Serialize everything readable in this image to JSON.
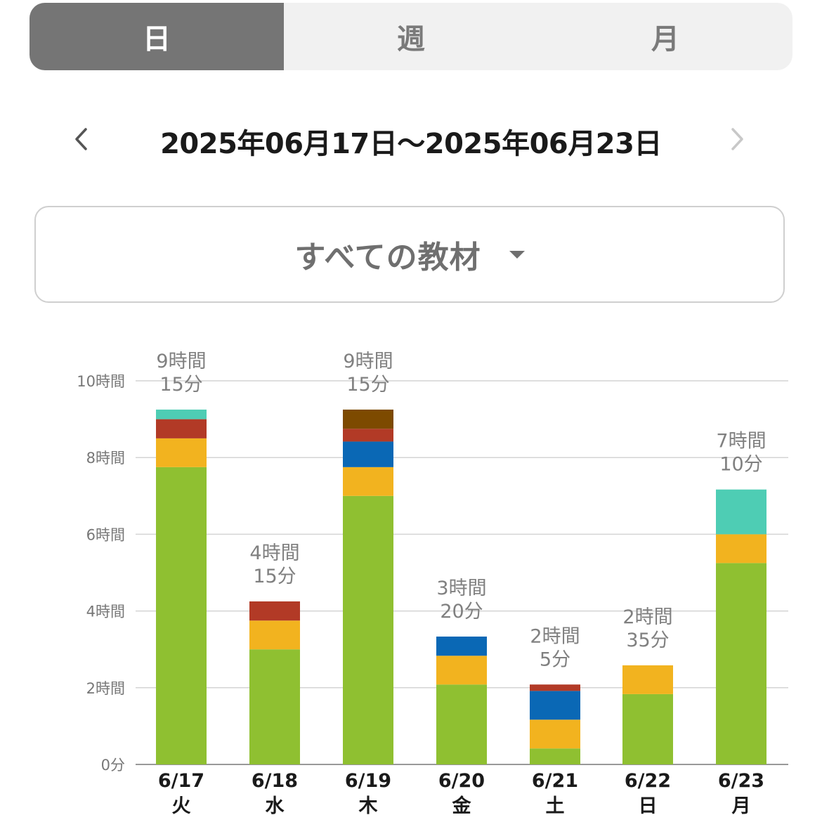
{
  "tabs": [
    {
      "label": "日",
      "active": true
    },
    {
      "label": "週",
      "active": false
    },
    {
      "label": "月",
      "active": false
    }
  ],
  "date_nav": {
    "range": "2025年06月17日〜2025年06月23日",
    "prev_icon": "chevron-left-icon",
    "next_icon": "chevron-right-icon"
  },
  "material_select": {
    "label": "すべての教材",
    "icon": "caret-down-icon"
  },
  "colors": {
    "green": "#8fc031",
    "yellow": "#f2b31f",
    "red": "#b23a26",
    "teal": "#4ecdb4",
    "blue": "#0a68b5",
    "brown": "#7d4a00",
    "grid": "#d4d4d4",
    "axis": "#999999"
  },
  "chart_data": {
    "type": "bar",
    "stacked": true,
    "unit": "minutes",
    "ylim": [
      0,
      600
    ],
    "ticks": [
      {
        "value": 0,
        "label": "0分"
      },
      {
        "value": 120,
        "label": "2時間"
      },
      {
        "value": 240,
        "label": "4時間"
      },
      {
        "value": 360,
        "label": "6時間"
      },
      {
        "value": 480,
        "label": "8時間"
      },
      {
        "value": 600,
        "label": "10時間"
      }
    ],
    "categories": [
      {
        "date": "6/17",
        "weekday": "火",
        "total_line1": "9時間",
        "total_line2": "15分"
      },
      {
        "date": "6/18",
        "weekday": "水",
        "total_line1": "4時間",
        "total_line2": "15分"
      },
      {
        "date": "6/19",
        "weekday": "木",
        "total_line1": "9時間",
        "total_line2": "15分"
      },
      {
        "date": "6/20",
        "weekday": "金",
        "total_line1": "3時間",
        "total_line2": "20分"
      },
      {
        "date": "6/21",
        "weekday": "土",
        "total_line1": "2時間",
        "total_line2": "5分"
      },
      {
        "date": "6/22",
        "weekday": "日",
        "total_line1": "2時間",
        "total_line2": "35分"
      },
      {
        "date": "6/23",
        "weekday": "月",
        "total_line1": "7時間",
        "total_line2": "10分"
      }
    ],
    "series": [
      {
        "color": "#8fc031",
        "values": [
          465,
          180,
          420,
          125,
          25,
          110,
          315
        ]
      },
      {
        "color": "#f2b31f",
        "values": [
          45,
          45,
          45,
          45,
          45,
          45,
          45
        ]
      },
      {
        "color": "#0a68b5",
        "values": [
          0,
          0,
          40,
          30,
          45,
          0,
          0
        ]
      },
      {
        "color": "#b23a26",
        "values": [
          30,
          30,
          20,
          0,
          10,
          0,
          0
        ]
      },
      {
        "color": "#7d4a00",
        "values": [
          0,
          0,
          30,
          0,
          0,
          0,
          0
        ]
      },
      {
        "color": "#4ecdb4",
        "values": [
          15,
          0,
          0,
          0,
          0,
          0,
          70
        ]
      }
    ],
    "grid": true,
    "legend": "none"
  }
}
